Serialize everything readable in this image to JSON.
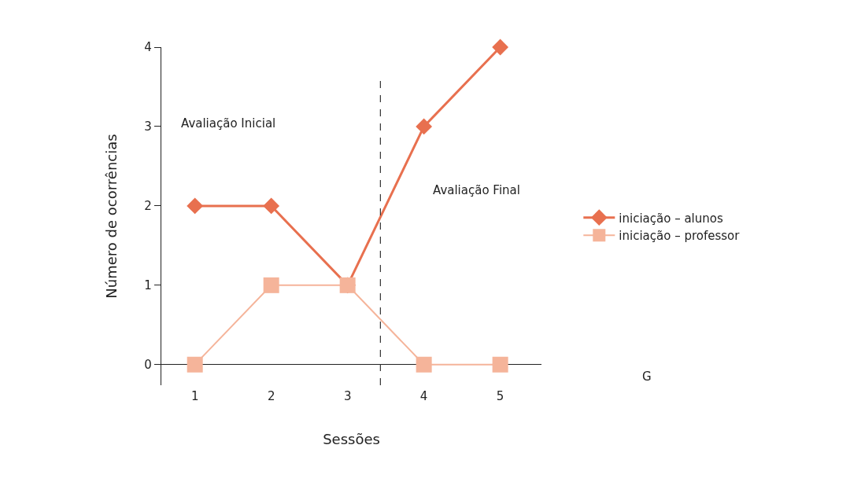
{
  "chart_data": {
    "type": "line",
    "xlabel": "Sessões",
    "ylabel": "Número de ocorrências",
    "x": [
      1,
      2,
      3,
      4,
      5
    ],
    "xlim": [
      0.56,
      5.54
    ],
    "xticks": [
      1,
      2,
      3,
      4,
      5
    ],
    "ylim": [
      -0.26,
      4
    ],
    "yticks": [
      0,
      1,
      2,
      3,
      4
    ],
    "series": [
      {
        "name": "iniciação – alunos",
        "color": "#e8704f",
        "marker": "diamond",
        "values": [
          2,
          2,
          1,
          3,
          4
        ]
      },
      {
        "name": "iniciação – professor",
        "color": "#f5b49a",
        "marker": "square",
        "values": [
          0,
          1,
          1,
          0,
          0
        ]
      }
    ],
    "ref_lines": [
      {
        "axis": "x",
        "value": 3.43,
        "color": "#333333",
        "line_style": "dashed"
      }
    ],
    "annotations": [
      "Avaliação Inicial",
      "Avaliação Final",
      "G"
    ],
    "legend": "right"
  }
}
